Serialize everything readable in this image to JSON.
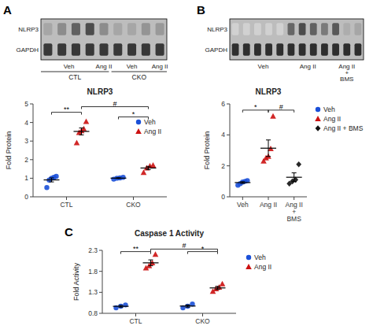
{
  "chart_data": [
    {
      "type": "blot",
      "panel_label": "A",
      "series": [
        {
          "name": "NLRP3",
          "colors": [
            "#a6a6a6",
            "#8c8c8c",
            "#616161",
            "#4c4c4c",
            "#8c8c8c",
            "#a6a6a6",
            "#a6a6a6",
            "#949494",
            "#999999"
          ]
        },
        {
          "name": "GAPDH",
          "colors": [
            "#383838",
            "#383838",
            "#383838",
            "#383838",
            "#383838",
            "#383838",
            "#383838",
            "#383838",
            "#383838"
          ]
        }
      ],
      "lane_labels": [
        "Veh",
        "Ang II",
        "Veh",
        "Ang II"
      ],
      "group_labels": [
        "CTL",
        "CKO"
      ]
    },
    {
      "type": "scatter",
      "title": "NLRP3",
      "y_label": "Fold Protein",
      "categories": [
        "CTL",
        "CKO"
      ],
      "series": [
        {
          "name": "Veh",
          "color": "#1b50d8",
          "marker": "circle",
          "values": [
            [
              0.5,
              0.9,
              1.0,
              1.05,
              1.1
            ],
            [
              0.95,
              1.0,
              1.02,
              1.05
            ]
          ],
          "mean": [
            0.91,
            1.005
          ],
          "error": [
            0.107703,
            0.021016
          ]
        },
        {
          "name": "Ang II",
          "color": "#cc1111",
          "marker": "triangle",
          "values": [
            [
              2.9,
              3.45,
              3.55,
              3.65,
              4.05
            ],
            [
              1.3,
              1.55,
              1.65,
              1.7
            ]
          ],
          "mean": [
            3.52,
            1.55
          ],
          "error": [
            0.185472,
            0.088976
          ]
        }
      ],
      "ylim": [
        0,
        5
      ],
      "yticks": [
        0,
        1,
        2,
        3,
        4,
        5
      ],
      "legend": "right",
      "annotations": [
        {
          "text": "**",
          "y": 4.55
        },
        {
          "text": "#",
          "y": 4.85
        },
        {
          "text": "*",
          "y": 4.3
        }
      ]
    },
    {
      "type": "blot",
      "panel_label": "B",
      "series": [
        {
          "name": "NLRP3",
          "colors": [
            "#d1d1d1",
            "#d1d1d1",
            "#d1d1d1",
            "#d1d1d1",
            "#d1d1d1",
            "#666666",
            "#4c4c4c",
            "#616161",
            "#7a7a7a",
            "#595959",
            "#adadad",
            "#a6a6a6"
          ]
        },
        {
          "name": "GAPDH",
          "colors": [
            "#2e2e2e",
            "#2e2e2e",
            "#2e2e2e",
            "#2e2e2e",
            "#2e2e2e",
            "#2e2e2e",
            "#2e2e2e",
            "#2e2e2e",
            "#2e2e2e",
            "#2e2e2e",
            "#2e2e2e",
            "#2e2e2e"
          ]
        }
      ],
      "lane_labels": [
        "Veh",
        "Ang II",
        "Ang II\n+\nBMS"
      ]
    },
    {
      "type": "scatter",
      "title": "NLRP3",
      "y_label": "Fold Protein",
      "categories": [
        "Veh",
        "Ang II",
        "Ang II\n+\nBMS"
      ],
      "series": [
        {
          "name": "Veh",
          "color": "#1b50d8",
          "marker": "circle",
          "values": [
            [
              0.75,
              0.85,
              0.95,
              1.0,
              1.05
            ],
            null,
            null
          ],
          "mean": [
            0.92,
            null,
            null
          ],
          "error": [
            0.053852,
            null,
            null
          ]
        },
        {
          "name": "Ang II",
          "color": "#cc1111",
          "marker": "triangle",
          "values": [
            null,
            [
              2.3,
              2.5,
              2.6,
              3.1,
              5.2
            ],
            null
          ],
          "mean": [
            null,
            3.14,
            null
          ],
          "error": [
            null,
            0.531601,
            null
          ]
        },
        {
          "name": "Ang II + BMS",
          "color": "#111111",
          "marker": "diamond",
          "values": [
            null,
            null,
            [
              0.85,
              1.0,
              1.1,
              2.1
            ]
          ],
          "mean": [
            null,
            null,
            1.2625
          ],
          "error": [
            null,
            null,
            0.283854
          ]
        }
      ],
      "ylim": [
        0,
        6
      ],
      "yticks": [
        0,
        2,
        4,
        6
      ],
      "legend": "right",
      "annotations": [
        {
          "text": "*",
          "y": 5.6
        },
        {
          "text": "#",
          "y": 5.6
        }
      ]
    },
    {
      "type": "scatter",
      "panel_label": "C",
      "title": "Caspase 1 Activity",
      "y_label": "Fold Activity",
      "categories": [
        "CTL",
        "CKO"
      ],
      "series": [
        {
          "name": "Veh",
          "color": "#1b50d8",
          "marker": "circle",
          "values": [
            [
              0.93,
              0.97,
              1.0
            ],
            [
              0.93,
              0.97,
              1.02
            ]
          ],
          "mean": [
            0.966667,
            0.973333
          ],
          "error": [
            0.020276,
            0.026034
          ]
        },
        {
          "name": "Ang II",
          "color": "#cc1111",
          "marker": "triangle",
          "values": [
            [
              1.88,
              1.93,
              2.0,
              2.2
            ],
            [
              1.32,
              1.38,
              1.42,
              1.5
            ]
          ],
          "mean": [
            2.0025,
            1.405
          ],
          "error": [
            0.070282,
            0.037749
          ]
        }
      ],
      "ylim": [
        0.8,
        2.3
      ],
      "yticks": [
        0.8,
        1.3,
        1.8,
        2.3
      ],
      "legend": "right",
      "annotations": [
        {
          "text": "**",
          "y": 2.27
        },
        {
          "text": "#",
          "y": 2.33
        },
        {
          "text": "*",
          "y": 2.27
        }
      ]
    }
  ]
}
